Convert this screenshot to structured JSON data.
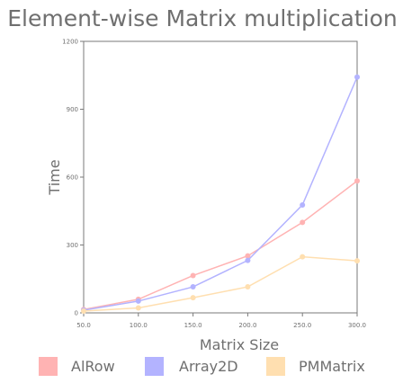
{
  "chart_data": {
    "type": "line",
    "title": "Element-wise Matrix multiplication",
    "xlabel": "Matrix Size",
    "ylabel": "Time",
    "x": [
      50.0,
      100.0,
      150.0,
      200.0,
      250.0,
      300.0
    ],
    "x_tick_labels": [
      "50.0",
      "100.0",
      "150.0",
      "200.0",
      "250.0",
      "300.0"
    ],
    "xlim": [
      50,
      300
    ],
    "ylim": [
      0,
      1200
    ],
    "y_ticks": [
      0,
      300,
      600,
      900,
      1200
    ],
    "y_tick_labels": [
      "0",
      "300",
      "600",
      "900",
      "1200"
    ],
    "grid": false,
    "legend_position": "bottom",
    "series": [
      {
        "name": "AlRow",
        "color": "#ffb3b3",
        "values": [
          15,
          60,
          165,
          252,
          400,
          583
        ]
      },
      {
        "name": "Array2D",
        "color": "#b3b3ff",
        "values": [
          12,
          52,
          115,
          232,
          477,
          1042
        ]
      },
      {
        "name": "PMMatrix",
        "color": "#ffdfb0",
        "values": [
          8,
          22,
          67,
          115,
          248,
          230
        ]
      }
    ]
  }
}
